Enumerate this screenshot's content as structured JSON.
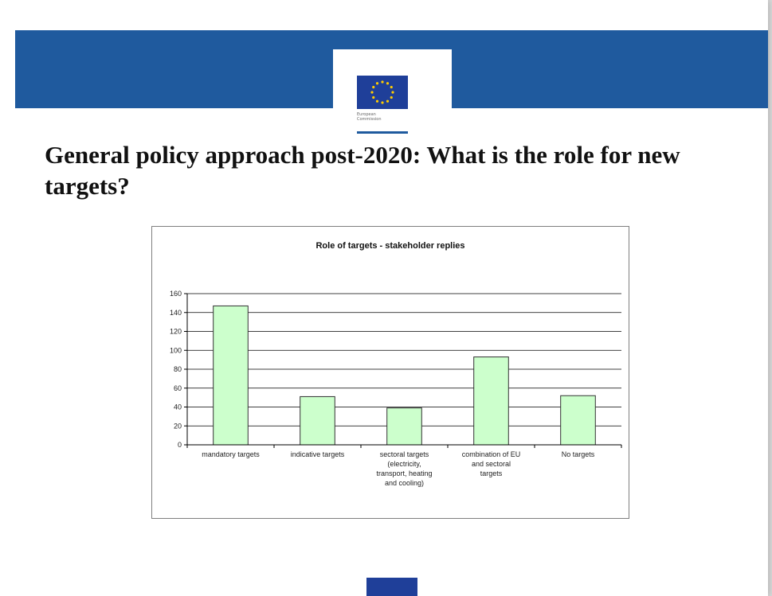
{
  "logo": {
    "line1": "European",
    "line2": "Commission"
  },
  "slide_title": "General policy approach post-2020: What is the role for new targets?",
  "colors": {
    "banner": "#1f5a9e",
    "flag": "#1f3f99",
    "stars": "#ffcc00",
    "bar_fill": "#ccffcc",
    "bar_stroke": "#333333"
  },
  "chart_data": {
    "type": "bar",
    "title": "Role of targets - stakeholder replies",
    "xlabel": "",
    "ylabel": "",
    "ylim": [
      0,
      160
    ],
    "yticks": [
      0,
      20,
      40,
      60,
      80,
      100,
      120,
      140,
      160
    ],
    "grid": true,
    "legend": "none",
    "categories": [
      [
        "mandatory targets"
      ],
      [
        "indicative targets"
      ],
      [
        "sectoral targets",
        "(electricity,",
        "transport, heating",
        "and cooling)"
      ],
      [
        "combination of EU",
        "and sectoral",
        "targets"
      ],
      [
        "No targets"
      ]
    ],
    "values": [
      147,
      51,
      39,
      93,
      52
    ]
  }
}
